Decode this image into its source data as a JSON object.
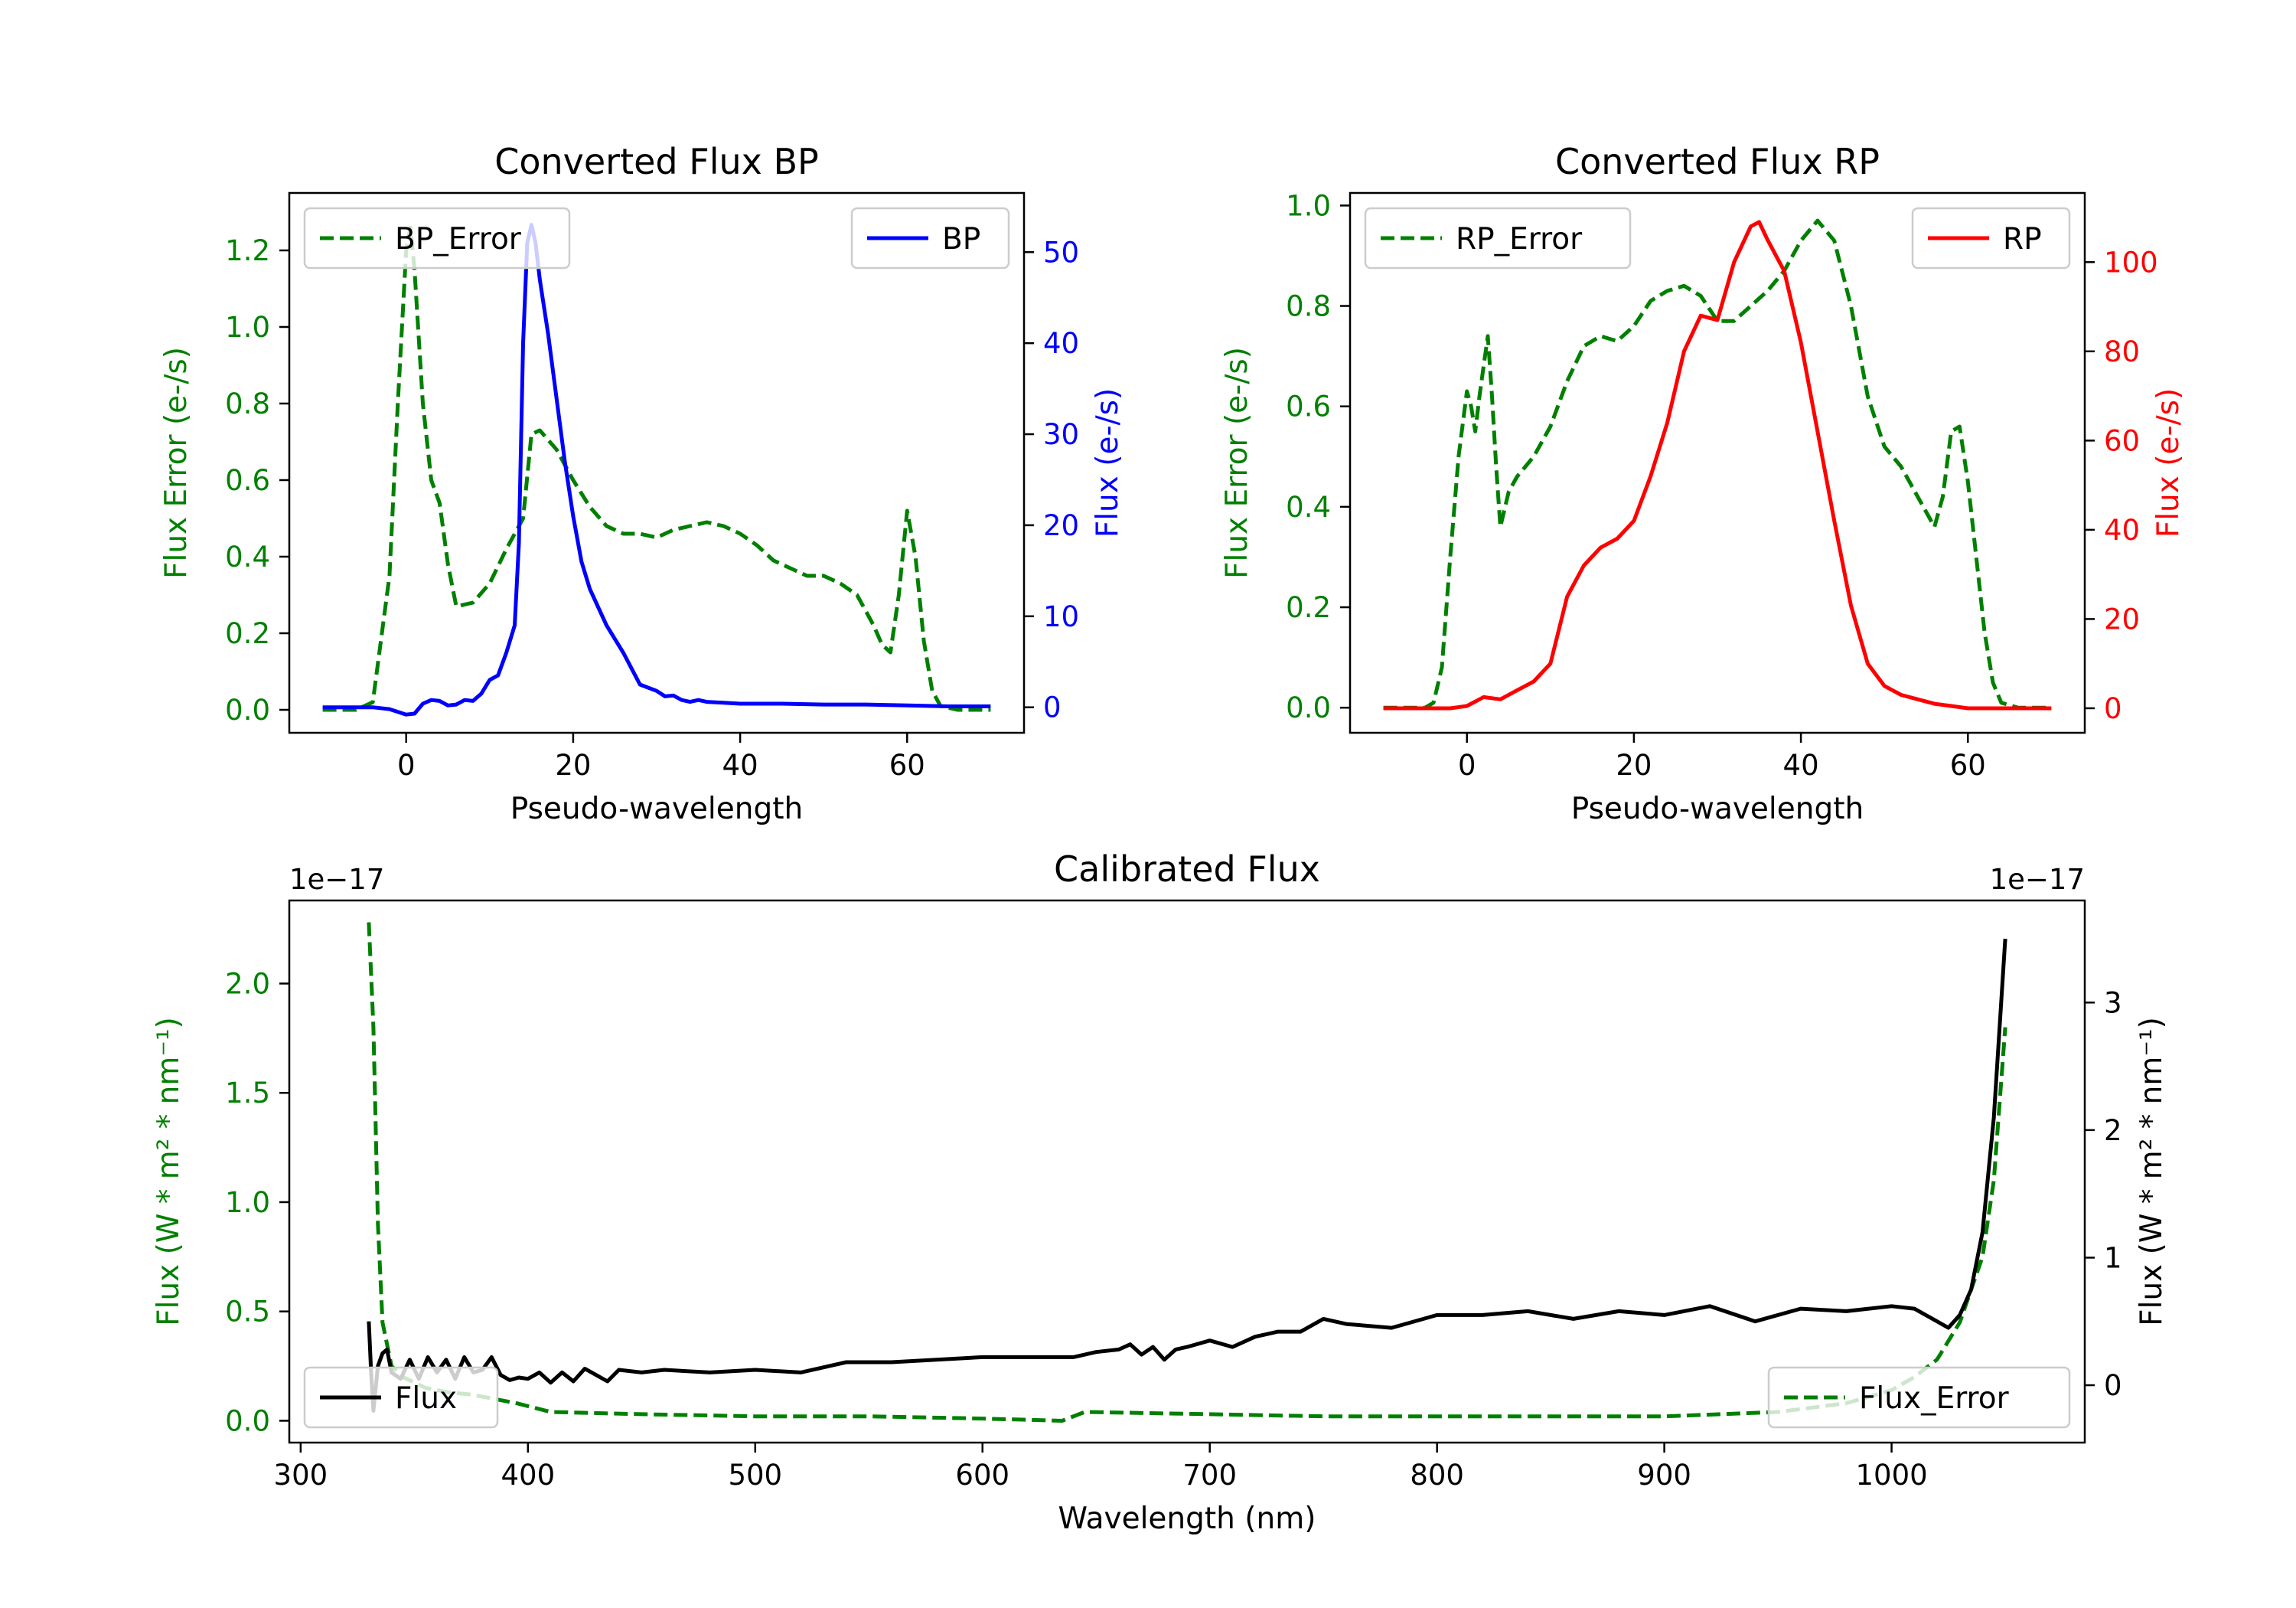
{
  "chart_data": [
    {
      "id": "bp",
      "type": "line",
      "title": "Converted Flux BP",
      "xlabel": "Pseudo-wavelength",
      "xlim": [
        -14,
        74
      ],
      "xticks": [
        0,
        20,
        40,
        60
      ],
      "left_axis": {
        "label": "Flux Error (e-/s)",
        "color": "#008000",
        "ylim": [
          -0.06,
          1.35
        ],
        "ticks": [
          "0.0",
          "0.2",
          "0.4",
          "0.6",
          "0.8",
          "1.0",
          "1.2"
        ]
      },
      "right_axis": {
        "label": "Flux (e-/s)",
        "color": "#0000ff",
        "ylim": [
          -2.8,
          56.5
        ],
        "ticks": [
          "0",
          "10",
          "20",
          "30",
          "40",
          "50"
        ]
      },
      "series": [
        {
          "name": "BP_Error",
          "axis": "left",
          "color": "#008000",
          "dash": true,
          "x": [
            -10,
            -6,
            -4,
            -2,
            -1,
            0,
            0.5,
            1,
            2,
            3,
            4,
            5,
            6,
            8,
            10,
            12,
            14,
            15,
            16,
            18,
            20,
            22,
            24,
            26,
            28,
            30,
            32,
            34,
            36,
            38,
            40,
            42,
            44,
            46,
            48,
            50,
            52,
            54,
            56,
            57,
            58,
            59,
            60,
            61,
            62,
            63,
            64,
            66,
            68,
            70
          ],
          "y": [
            0,
            0,
            0.02,
            0.35,
            0.8,
            1.2,
            1.26,
            1.15,
            0.8,
            0.6,
            0.54,
            0.38,
            0.27,
            0.28,
            0.33,
            0.42,
            0.5,
            0.72,
            0.73,
            0.68,
            0.6,
            0.53,
            0.48,
            0.46,
            0.46,
            0.45,
            0.47,
            0.48,
            0.49,
            0.48,
            0.46,
            0.43,
            0.39,
            0.37,
            0.35,
            0.35,
            0.33,
            0.3,
            0.22,
            0.17,
            0.15,
            0.3,
            0.52,
            0.4,
            0.18,
            0.05,
            0.01,
            0,
            0,
            0
          ]
        },
        {
          "name": "BP",
          "axis": "right",
          "color": "#0000ff",
          "dash": false,
          "x": [
            -10,
            -4,
            -2,
            0,
            1,
            2,
            3,
            4,
            5,
            6,
            7,
            8,
            9,
            10,
            11,
            12,
            13,
            13.5,
            14,
            14.5,
            15,
            15.5,
            16,
            17,
            18,
            19,
            20,
            21,
            22,
            24,
            26,
            28,
            30,
            31,
            32,
            33,
            34,
            35,
            36,
            38,
            40,
            45,
            50,
            55,
            60,
            65,
            70
          ],
          "y": [
            0,
            0,
            -0.2,
            -0.8,
            -0.7,
            0.4,
            0.8,
            0.7,
            0.2,
            0.3,
            0.8,
            0.7,
            1.5,
            3,
            3.5,
            6,
            9,
            18,
            40,
            51,
            53,
            51,
            47,
            41,
            34,
            27,
            21,
            16,
            13,
            9,
            6,
            2.5,
            1.8,
            1.2,
            1.3,
            0.8,
            0.6,
            0.8,
            0.6,
            0.5,
            0.4,
            0.4,
            0.3,
            0.3,
            0.2,
            0.1,
            0.1
          ]
        }
      ],
      "legend": [
        {
          "label": "BP_Error",
          "position": "upper-left"
        },
        {
          "label": "BP",
          "position": "upper-right"
        }
      ]
    },
    {
      "id": "rp",
      "type": "line",
      "title": "Converted Flux RP",
      "xlabel": "Pseudo-wavelength",
      "xlim": [
        -14,
        74
      ],
      "xticks": [
        0,
        20,
        40,
        60
      ],
      "left_axis": {
        "label": "Flux Error (e-/s)",
        "color": "#008000",
        "ylim": [
          -0.05,
          1.025
        ],
        "ticks": [
          "0.0",
          "0.2",
          "0.4",
          "0.6",
          "0.8",
          "1.0"
        ]
      },
      "right_axis": {
        "label": "Flux (e-/s)",
        "color": "#ff0000",
        "ylim": [
          -5.5,
          115.5
        ],
        "ticks": [
          "0",
          "20",
          "40",
          "60",
          "80",
          "100"
        ]
      },
      "series": [
        {
          "name": "RP_Error",
          "axis": "left",
          "color": "#008000",
          "dash": true,
          "x": [
            -10,
            -5,
            -4,
            -3,
            -2,
            -1,
            0,
            0.5,
            1,
            1.5,
            2,
            2.5,
            3,
            3.5,
            4,
            5,
            6,
            8,
            10,
            12,
            14,
            16,
            18,
            20,
            22,
            24,
            26,
            28,
            30,
            32,
            34,
            36,
            38,
            40,
            42,
            44,
            46,
            48,
            50,
            52,
            54,
            56,
            57,
            58,
            59,
            60,
            61,
            62,
            63,
            64,
            66,
            68,
            70
          ],
          "y": [
            0,
            0,
            0.01,
            0.08,
            0.3,
            0.5,
            0.63,
            0.6,
            0.55,
            0.62,
            0.68,
            0.74,
            0.62,
            0.48,
            0.36,
            0.43,
            0.46,
            0.5,
            0.56,
            0.65,
            0.72,
            0.74,
            0.73,
            0.76,
            0.81,
            0.83,
            0.84,
            0.82,
            0.77,
            0.77,
            0.8,
            0.83,
            0.87,
            0.93,
            0.97,
            0.93,
            0.8,
            0.62,
            0.52,
            0.48,
            0.42,
            0.36,
            0.42,
            0.55,
            0.56,
            0.45,
            0.3,
            0.15,
            0.05,
            0.01,
            0,
            0,
            0
          ]
        },
        {
          "name": "RP",
          "axis": "right",
          "color": "#ff0000",
          "dash": false,
          "x": [
            -10,
            -2,
            0,
            2,
            4,
            6,
            8,
            10,
            12,
            14,
            16,
            18,
            20,
            22,
            24,
            26,
            28,
            30,
            32,
            34,
            35,
            36,
            38,
            40,
            42,
            44,
            46,
            48,
            50,
            52,
            54,
            56,
            58,
            60,
            65,
            70
          ],
          "y": [
            0,
            0,
            0.5,
            2.5,
            2,
            4,
            6,
            10,
            25,
            32,
            36,
            38,
            42,
            52,
            64,
            80,
            88,
            87,
            100,
            108,
            109,
            105,
            98,
            82,
            62,
            42,
            23,
            10,
            5,
            3,
            2,
            1,
            0.5,
            0,
            0,
            0
          ]
        }
      ],
      "legend": [
        {
          "label": "RP_Error",
          "position": "upper-left"
        },
        {
          "label": "RP",
          "position": "upper-right"
        }
      ]
    },
    {
      "id": "cal",
      "type": "line",
      "title": "Calibrated Flux",
      "xlabel": "Wavelength (nm)",
      "xlim": [
        295,
        1085
      ],
      "xticks": [
        300,
        400,
        500,
        600,
        700,
        800,
        900,
        1000
      ],
      "left_axis": {
        "label": "Flux (W * m² * nm⁻¹)",
        "color": "#008000",
        "ylim": [
          -0.1,
          2.38
        ],
        "offset": "1e−17",
        "ticks": [
          "0.0",
          "0.5",
          "1.0",
          "1.5",
          "2.0"
        ]
      },
      "right_axis": {
        "label": "Flux (W * m² * nm⁻¹)",
        "color": "#000000",
        "ylim": [
          -0.45,
          3.8
        ],
        "offset": "1e−17",
        "ticks": [
          "0",
          "1",
          "2",
          "3"
        ]
      },
      "series": [
        {
          "name": "Flux_Error",
          "axis": "left",
          "color": "#008000",
          "dash": true,
          "x": [
            330,
            332,
            334,
            336,
            340,
            345,
            355,
            365,
            375,
            385,
            395,
            410,
            450,
            500,
            550,
            600,
            635,
            645,
            700,
            750,
            800,
            850,
            900,
            950,
            980,
            1000,
            1010,
            1020,
            1030,
            1040,
            1045,
            1050
          ],
          "y": [
            2.28,
            1.8,
            0.9,
            0.45,
            0.25,
            0.2,
            0.15,
            0.13,
            0.12,
            0.1,
            0.08,
            0.04,
            0.03,
            0.02,
            0.02,
            0.01,
            0,
            0.04,
            0.03,
            0.02,
            0.02,
            0.02,
            0.02,
            0.04,
            0.08,
            0.14,
            0.2,
            0.28,
            0.45,
            0.75,
            1.1,
            1.8
          ]
        },
        {
          "name": "Flux",
          "axis": "right",
          "color": "#000000",
          "dash": false,
          "x": [
            330,
            331,
            332,
            334,
            336,
            338,
            340,
            344,
            348,
            352,
            356,
            360,
            364,
            368,
            372,
            376,
            380,
            384,
            388,
            392,
            396,
            400,
            405,
            410,
            415,
            420,
            425,
            430,
            435,
            440,
            450,
            460,
            480,
            500,
            520,
            540,
            560,
            600,
            640,
            650,
            660,
            665,
            670,
            675,
            680,
            685,
            690,
            700,
            710,
            720,
            730,
            740,
            750,
            760,
            780,
            800,
            820,
            840,
            860,
            880,
            900,
            920,
            940,
            960,
            980,
            1000,
            1010,
            1020,
            1025,
            1030,
            1035,
            1040,
            1045,
            1050
          ],
          "y": [
            0.5,
            0.1,
            -0.2,
            0.15,
            0.25,
            0.28,
            0.1,
            0.05,
            0.2,
            0.05,
            0.22,
            0.1,
            0.2,
            0.05,
            0.22,
            0.1,
            0.12,
            0.22,
            0.08,
            0.04,
            0.06,
            0.05,
            0.1,
            0.02,
            0.1,
            0.03,
            0.13,
            0.08,
            0.03,
            0.12,
            0.1,
            0.12,
            0.1,
            0.12,
            0.1,
            0.18,
            0.18,
            0.22,
            0.22,
            0.26,
            0.28,
            0.32,
            0.24,
            0.3,
            0.2,
            0.28,
            0.3,
            0.35,
            0.3,
            0.38,
            0.42,
            0.42,
            0.52,
            0.48,
            0.45,
            0.55,
            0.55,
            0.58,
            0.52,
            0.58,
            0.55,
            0.62,
            0.5,
            0.6,
            0.58,
            0.62,
            0.6,
            0.5,
            0.45,
            0.55,
            0.75,
            1.2,
            2.1,
            3.5
          ]
        }
      ],
      "legend": [
        {
          "label": "Flux",
          "position": "lower-left"
        },
        {
          "label": "Flux_Error",
          "position": "lower-right"
        }
      ]
    }
  ]
}
